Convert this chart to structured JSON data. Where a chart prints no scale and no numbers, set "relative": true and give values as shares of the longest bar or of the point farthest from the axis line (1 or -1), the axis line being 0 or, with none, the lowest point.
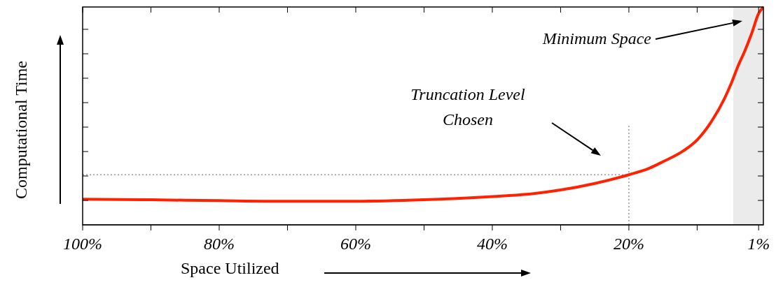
{
  "chart_data": {
    "type": "line",
    "relative": true,
    "xlabel": "Space Utilized",
    "ylabel": "Computational Time",
    "x": [
      100,
      90,
      80,
      70,
      60,
      50,
      40,
      35,
      30,
      25,
      20,
      17,
      15,
      12,
      10,
      8,
      6,
      5,
      4,
      3,
      2,
      1,
      0.3
    ],
    "series": [
      {
        "color": "#ff2200",
        "values": [
          0.118,
          0.115,
          0.111,
          0.108,
          0.108,
          0.115,
          0.13,
          0.14,
          0.16,
          0.19,
          0.23,
          0.26,
          0.29,
          0.34,
          0.39,
          0.47,
          0.58,
          0.65,
          0.73,
          0.8,
          0.88,
          0.97,
          1
        ]
      }
    ],
    "xlim": [
      100,
      0.3
    ],
    "xticks": [
      {
        "value": 100,
        "label": "100%"
      },
      {
        "value": 90,
        "label": null
      },
      {
        "value": 80,
        "label": "80%"
      },
      {
        "value": 70,
        "label": null
      },
      {
        "value": 60,
        "label": "60%"
      },
      {
        "value": 50,
        "label": null
      },
      {
        "value": 40,
        "label": "40%"
      },
      {
        "value": 30,
        "label": null
      },
      {
        "value": 20,
        "label": "20%"
      },
      {
        "value": 10,
        "label": null
      },
      {
        "value": 1,
        "label": "1%"
      }
    ],
    "ref_lines": [
      {
        "axis": "x",
        "value": 20,
        "color": "#999999",
        "line_style": "dotted"
      },
      {
        "axis": "y",
        "value": 0.23,
        "color": "#999999",
        "line_style": "dotted"
      }
    ],
    "bands": [
      {
        "axis": "x",
        "from": 4.7,
        "to": 0.3,
        "color": "#ebebeb"
      }
    ],
    "annotations": [
      "Minimum Space",
      "Truncation Level\nChosen"
    ],
    "marker": "none",
    "line_style": "solid"
  }
}
